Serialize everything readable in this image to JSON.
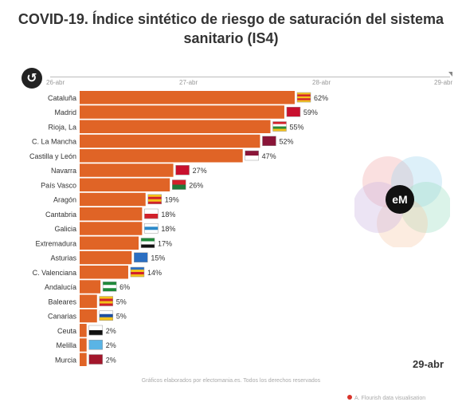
{
  "title": "COVID-19. Índice sintético de riesgo de saturación del sistema sanitario (IS4)",
  "timeline": {
    "ticks": [
      "26-abr",
      "27-abr",
      "28-abr",
      "29-abr"
    ],
    "current": "29-abr"
  },
  "footer_text": "Gráficos elaborados por electomania.es. Todos los derechos reservados",
  "bottom_note": "A. Flourish data visualisation",
  "logo_text": "eM",
  "colors": {
    "bar": "#e06426",
    "label_text": "#333333"
  },
  "chart_data": {
    "type": "bar",
    "orientation": "horizontal",
    "categories": [
      "Cataluña",
      "Madrid",
      "Rioja, La",
      "C. La Mancha",
      "Castilla y León",
      "Navarra",
      "País Vasco",
      "Aragón",
      "Cantabria",
      "Galicia",
      "Extremadura",
      "Asturias",
      "C. Valenciana",
      "Andalucía",
      "Baleares",
      "Canarias",
      "Ceuta",
      "Melilla",
      "Murcia"
    ],
    "values": [
      62,
      59,
      55,
      52,
      47,
      27,
      26,
      19,
      18,
      18,
      17,
      15,
      14,
      6,
      5,
      5,
      2,
      2,
      2
    ],
    "value_labels": [
      "62%",
      "59%",
      "55%",
      "52%",
      "47%",
      "27%",
      "26%",
      "19%",
      "18%",
      "18%",
      "17%",
      "15%",
      "14%",
      "6%",
      "5%",
      "5%",
      "2%",
      "2%",
      "2%"
    ],
    "flag_icons": [
      "cataluna-flag-icon",
      "madrid-flag-icon",
      "rioja-flag-icon",
      "castilla-la-mancha-flag-icon",
      "castilla-leon-flag-icon",
      "navarra-flag-icon",
      "pais-vasco-flag-icon",
      "aragon-flag-icon",
      "cantabria-flag-icon",
      "galicia-flag-icon",
      "extremadura-flag-icon",
      "asturias-flag-icon",
      "valenciana-flag-icon",
      "andalucia-flag-icon",
      "baleares-flag-icon",
      "canarias-flag-icon",
      "ceuta-flag-icon",
      "melilla-flag-icon",
      "murcia-flag-icon"
    ],
    "xlim": [
      0,
      62
    ],
    "unit": "%"
  }
}
